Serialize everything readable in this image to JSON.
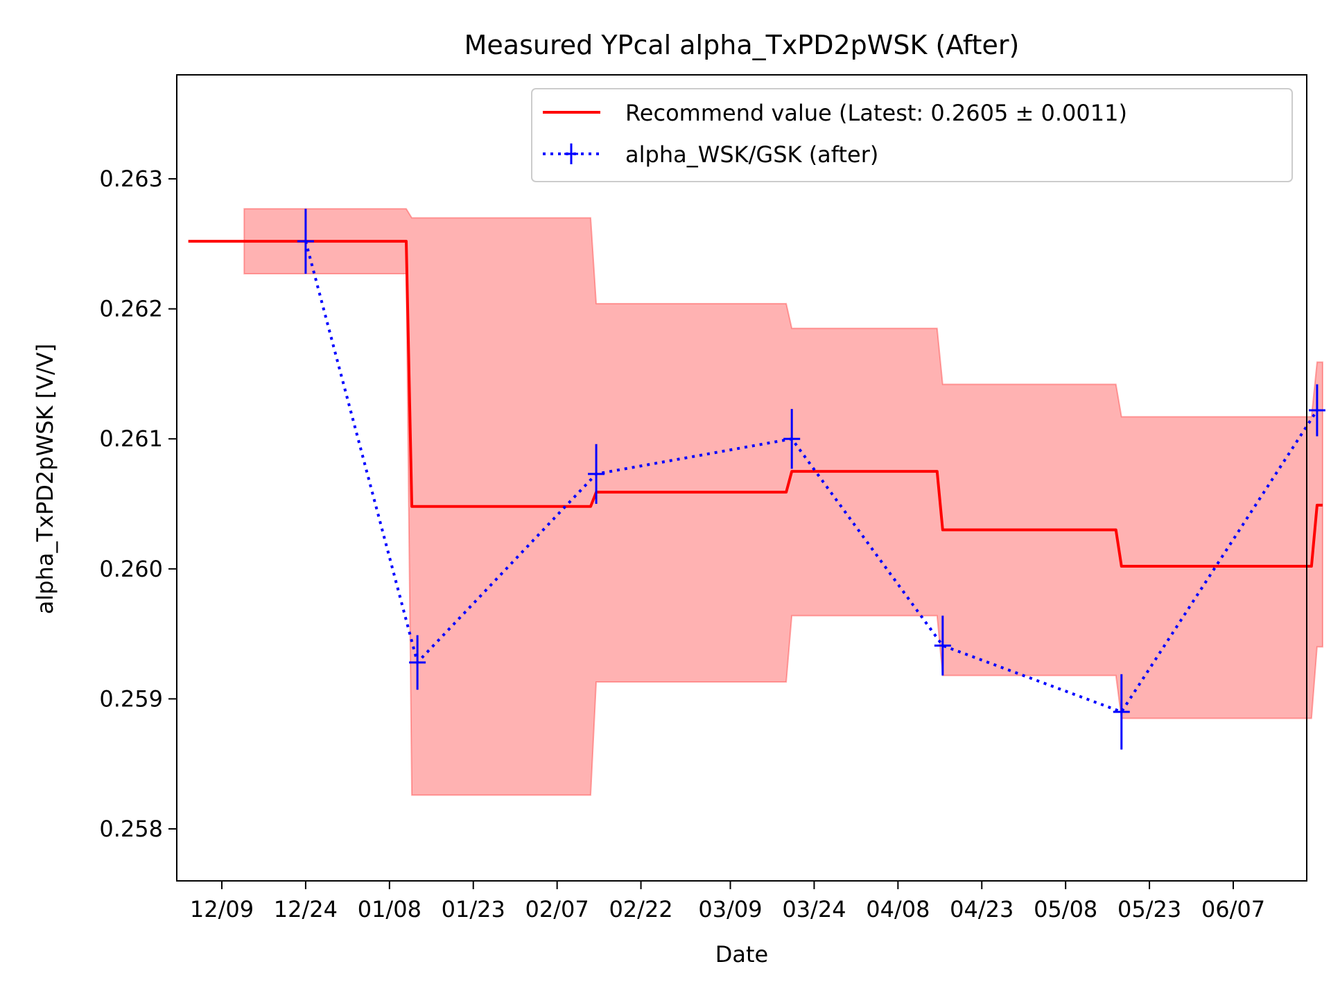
{
  "chart_data": {
    "type": "line",
    "title": "Measured YPcal alpha_TxPD2pWSK (After)",
    "xlabel": "Date",
    "ylabel": "alpha_TxPD2pWSK [V/V]",
    "x_ticks": [
      "12/09",
      "12/24",
      "01/08",
      "01/23",
      "02/07",
      "02/22",
      "03/09",
      "03/24",
      "04/08",
      "04/23",
      "05/08",
      "05/23",
      "06/07"
    ],
    "ylim": [
      0.2576,
      0.2638
    ],
    "y_ticks": [
      "0.258",
      "0.259",
      "0.260",
      "0.261",
      "0.262",
      "0.263"
    ],
    "grid": false,
    "legend_position": "top-right",
    "series": [
      {
        "name": "Recommend value (Latest: 0.2605 ± 0.0011)",
        "kind": "step-line-with-band",
        "color": "#ff0000",
        "band_color": "#ff0000",
        "points": [
          {
            "x": "12/03",
            "y": 0.26252,
            "lo": null,
            "hi": null
          },
          {
            "x": "12/13",
            "y": 0.26252,
            "lo": 0.26227,
            "hi": 0.26277
          },
          {
            "x": "01/11",
            "y": 0.26252,
            "lo": 0.26227,
            "hi": 0.26277
          },
          {
            "x": "01/12",
            "y": 0.26048,
            "lo": 0.25826,
            "hi": 0.2627
          },
          {
            "x": "02/13",
            "y": 0.26048,
            "lo": 0.25826,
            "hi": 0.2627
          },
          {
            "x": "02/14",
            "y": 0.26059,
            "lo": 0.25913,
            "hi": 0.26204
          },
          {
            "x": "03/19",
            "y": 0.26059,
            "lo": 0.25913,
            "hi": 0.26204
          },
          {
            "x": "03/20",
            "y": 0.26075,
            "lo": 0.25964,
            "hi": 0.26185
          },
          {
            "x": "04/15",
            "y": 0.26075,
            "lo": 0.25964,
            "hi": 0.26185
          },
          {
            "x": "04/16",
            "y": 0.2603,
            "lo": 0.25918,
            "hi": 0.26142
          },
          {
            "x": "05/17",
            "y": 0.2603,
            "lo": 0.25918,
            "hi": 0.26142
          },
          {
            "x": "05/18",
            "y": 0.26002,
            "lo": 0.25885,
            "hi": 0.26117
          },
          {
            "x": "06/21",
            "y": 0.26002,
            "lo": 0.25885,
            "hi": 0.26117
          },
          {
            "x": "06/22",
            "y": 0.26049,
            "lo": 0.2594,
            "hi": 0.26159
          },
          {
            "x": "06/23",
            "y": 0.26049,
            "lo": 0.2594,
            "hi": 0.26159
          }
        ]
      },
      {
        "name": "alpha_WSK/GSK (after)",
        "kind": "errorbar-dotted",
        "color": "#0000ff",
        "points": [
          {
            "x": "12/24",
            "y": 0.26252,
            "err": 0.00025
          },
          {
            "x": "01/13",
            "y": 0.25928,
            "err": 0.00021
          },
          {
            "x": "02/14",
            "y": 0.26073,
            "err": 0.00023
          },
          {
            "x": "03/20",
            "y": 0.261,
            "err": 0.00023
          },
          {
            "x": "04/16",
            "y": 0.25941,
            "err": 0.00023
          },
          {
            "x": "05/18",
            "y": 0.2589,
            "err": 0.00029
          },
          {
            "x": "06/22",
            "y": 0.26122,
            "err": 0.0002
          }
        ]
      }
    ]
  }
}
